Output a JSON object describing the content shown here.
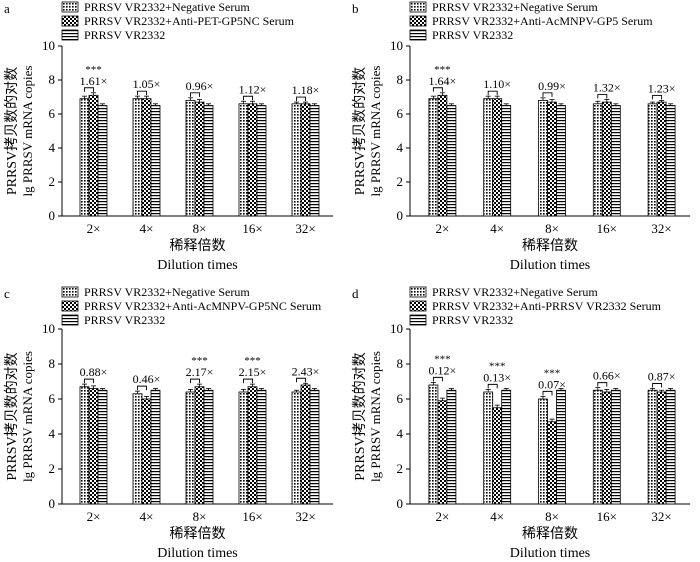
{
  "figure": {
    "y_tick_labels": [
      "0",
      "2",
      "4",
      "6",
      "8",
      "10"
    ],
    "ylabel_cn": "PRRSV拷贝数的对数",
    "ylabel_en": "lg PRRSV mRNA copies",
    "xlabel_cn": "稀释倍数",
    "xlabel_en": "Dilution times"
  },
  "chart_data": [
    {
      "panel": "a",
      "type": "bar",
      "categories": [
        "2×",
        "4×",
        "8×",
        "16×",
        "32×"
      ],
      "series": [
        {
          "name": "PRRSV VR2332+Negative Serum",
          "values": [
            6.9,
            6.9,
            6.8,
            6.6,
            6.6
          ],
          "errors": [
            0.15,
            0.15,
            0.15,
            0.15,
            0.1
          ]
        },
        {
          "name": "PRRSV VR2332+Anti-PET-GP5NC Serum",
          "values": [
            7.1,
            6.9,
            6.7,
            6.6,
            6.6
          ],
          "errors": [
            0.15,
            0.15,
            0.15,
            0.15,
            0.1
          ]
        },
        {
          "name": "PRRSV VR2332",
          "values": [
            6.5,
            6.5,
            6.5,
            6.5,
            6.5
          ],
          "errors": [
            0.1,
            0.1,
            0.1,
            0.1,
            0.1
          ]
        }
      ],
      "fold_labels": [
        "1.61×",
        "1.05×",
        "0.96×",
        "1.12×",
        "1.18×"
      ],
      "significance": [
        "***",
        "",
        "",
        "",
        ""
      ],
      "ylim": [
        0,
        10
      ],
      "ylabel": "PRRSV拷贝数的对数 lg PRRSV mRNA copies",
      "xlabel": "稀释倍数 Dilution times"
    },
    {
      "panel": "b",
      "type": "bar",
      "categories": [
        "2×",
        "4×",
        "8×",
        "16×",
        "32×"
      ],
      "series": [
        {
          "name": "PRRSV VR2332+Negative Serum",
          "values": [
            6.9,
            6.9,
            6.8,
            6.6,
            6.6
          ],
          "errors": [
            0.15,
            0.15,
            0.15,
            0.15,
            0.1
          ]
        },
        {
          "name": "PRRSV VR2332+Anti-AcMNPV-GP5 Serum",
          "values": [
            7.1,
            6.9,
            6.7,
            6.7,
            6.7
          ],
          "errors": [
            0.15,
            0.15,
            0.15,
            0.15,
            0.1
          ]
        },
        {
          "name": "PRRSV VR2332",
          "values": [
            6.5,
            6.5,
            6.5,
            6.5,
            6.5
          ],
          "errors": [
            0.1,
            0.1,
            0.1,
            0.1,
            0.1
          ]
        }
      ],
      "fold_labels": [
        "1.64×",
        "1.10×",
        "0.99×",
        "1.32×",
        "1.23×"
      ],
      "significance": [
        "***",
        "",
        "",
        "",
        ""
      ],
      "ylim": [
        0,
        10
      ],
      "ylabel": "PRRSV拷贝数的对数 lg PRRSV mRNA copies",
      "xlabel": "稀释倍数 Dilution times"
    },
    {
      "panel": "c",
      "type": "bar",
      "categories": [
        "2×",
        "4×",
        "8×",
        "16×",
        "32×"
      ],
      "series": [
        {
          "name": "PRRSV VR2332+Negative Serum",
          "values": [
            6.7,
            6.3,
            6.4,
            6.4,
            6.4
          ],
          "errors": [
            0.15,
            0.15,
            0.15,
            0.15,
            0.1
          ]
        },
        {
          "name": "PRRSV VR2332+Anti-AcMNPV-GP5NC Serum",
          "values": [
            6.6,
            6.0,
            6.7,
            6.7,
            6.8
          ],
          "errors": [
            0.15,
            0.15,
            0.15,
            0.15,
            0.1
          ]
        },
        {
          "name": "PRRSV VR2332",
          "values": [
            6.5,
            6.5,
            6.5,
            6.5,
            6.5
          ],
          "errors": [
            0.1,
            0.1,
            0.1,
            0.1,
            0.1
          ]
        }
      ],
      "fold_labels": [
        "0.88×",
        "0.46×",
        "2.17×",
        "2.15×",
        "2.43×"
      ],
      "significance": [
        "",
        "",
        "***",
        "***",
        ""
      ],
      "ylim": [
        0,
        10
      ],
      "ylabel": "PRRSV拷贝数的对数 lg PRRSV mRNA copies",
      "xlabel": "稀释倍数 Dilution times"
    },
    {
      "panel": "d",
      "type": "bar",
      "categories": [
        "2×",
        "4×",
        "8×",
        "16×",
        "32×"
      ],
      "series": [
        {
          "name": "PRRSV VR2332+Negative Serum",
          "values": [
            6.8,
            6.4,
            6.0,
            6.5,
            6.5
          ],
          "errors": [
            0.15,
            0.15,
            0.15,
            0.15,
            0.1
          ]
        },
        {
          "name": "PRRSV VR2332+Anti-PRRSV VR2332 Serum",
          "values": [
            5.9,
            5.5,
            4.7,
            6.4,
            6.4
          ],
          "errors": [
            0.15,
            0.15,
            0.15,
            0.15,
            0.1
          ]
        },
        {
          "name": "PRRSV VR2332",
          "values": [
            6.5,
            6.5,
            6.5,
            6.5,
            6.5
          ],
          "errors": [
            0.1,
            0.1,
            0.1,
            0.1,
            0.1
          ]
        }
      ],
      "fold_labels": [
        "0.12×",
        "0.13×",
        "0.07×",
        "0.66×",
        "0.87×"
      ],
      "significance": [
        "***",
        "***",
        "***",
        "",
        ""
      ],
      "ylim": [
        0,
        10
      ],
      "ylabel": "PRRSV拷贝数的对数 lg PRRSV mRNA copies",
      "xlabel": "稀释倍数 Dilution times"
    }
  ]
}
